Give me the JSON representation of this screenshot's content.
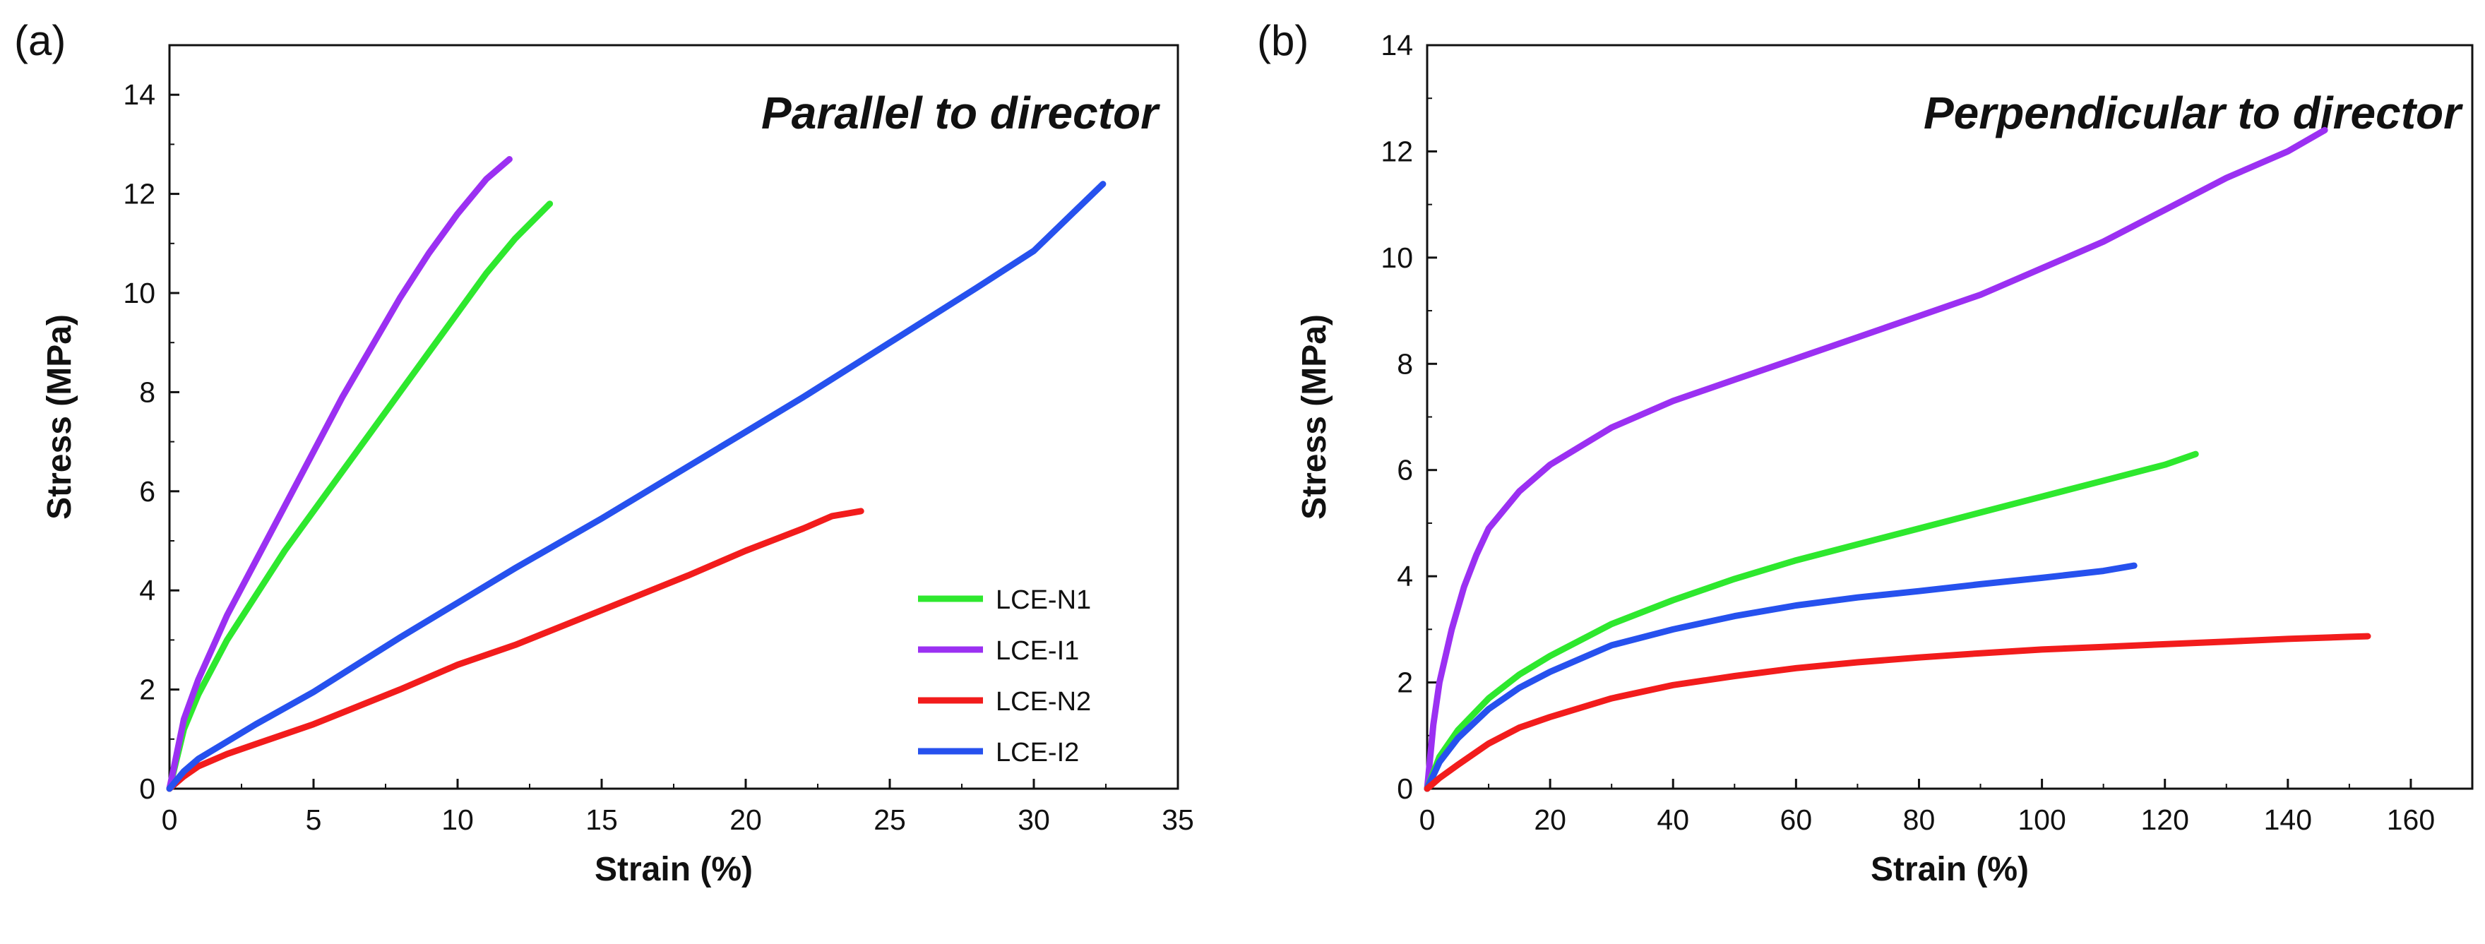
{
  "colors": {
    "LCE-N1": "#2ee82e",
    "LCE-I1": "#9b30f2",
    "LCE-N2": "#f21c1c",
    "LCE-I2": "#2651ee"
  },
  "chart_data": [
    {
      "type": "line",
      "panel_label": "(a)",
      "title": "Parallel to director",
      "xlabel": "Strain (%)",
      "ylabel": "Stress (MPa)",
      "xlim": [
        0,
        35
      ],
      "ylim": [
        0,
        15
      ],
      "xticks": [
        0,
        5,
        10,
        15,
        20,
        25,
        30,
        35
      ],
      "yticks": [
        0,
        2,
        4,
        6,
        8,
        10,
        12,
        14
      ],
      "legend": {
        "position": "lower-right",
        "entries": [
          "LCE-N1",
          "LCE-I1",
          "LCE-N2",
          "LCE-I2"
        ]
      },
      "series": [
        {
          "name": "LCE-N1",
          "x": [
            0,
            0.5,
            1,
            2,
            3,
            4,
            5,
            6,
            7,
            8,
            9,
            10,
            11,
            12,
            13.2
          ],
          "y": [
            0,
            1.2,
            1.9,
            3.0,
            3.9,
            4.8,
            5.6,
            6.4,
            7.2,
            8.0,
            8.8,
            9.6,
            10.4,
            11.1,
            11.8
          ]
        },
        {
          "name": "LCE-I1",
          "x": [
            0,
            0.5,
            1,
            2,
            3,
            4,
            5,
            6,
            7,
            8,
            9,
            10,
            11,
            11.8
          ],
          "y": [
            0,
            1.4,
            2.2,
            3.5,
            4.6,
            5.7,
            6.8,
            7.9,
            8.9,
            9.9,
            10.8,
            11.6,
            12.3,
            12.7
          ]
        },
        {
          "name": "LCE-N2",
          "x": [
            0,
            0.5,
            1,
            2,
            3,
            5,
            8,
            10,
            12,
            15,
            18,
            20,
            22,
            23,
            24
          ],
          "y": [
            0,
            0.25,
            0.45,
            0.7,
            0.9,
            1.3,
            2.0,
            2.5,
            2.9,
            3.6,
            4.3,
            4.8,
            5.25,
            5.5,
            5.6
          ]
        },
        {
          "name": "LCE-I2",
          "x": [
            0,
            0.5,
            1,
            2,
            3,
            5,
            8,
            10,
            12,
            15,
            18,
            20,
            22,
            25,
            28,
            30,
            32.4
          ],
          "y": [
            0,
            0.35,
            0.6,
            0.95,
            1.3,
            1.95,
            3.05,
            3.75,
            4.45,
            5.45,
            6.5,
            7.2,
            7.9,
            9.0,
            10.1,
            10.85,
            12.2
          ]
        }
      ]
    },
    {
      "type": "line",
      "panel_label": "(b)",
      "title": "Perpendicular to director",
      "xlabel": "Strain (%)",
      "ylabel": "Stress (MPa)",
      "xlim": [
        0,
        170
      ],
      "ylim": [
        0,
        14
      ],
      "xticks": [
        0,
        20,
        40,
        60,
        80,
        100,
        120,
        140,
        160
      ],
      "yticks": [
        0,
        2,
        4,
        6,
        8,
        10,
        12,
        14
      ],
      "series": [
        {
          "name": "LCE-I1",
          "x": [
            0,
            1,
            2,
            4,
            6,
            8,
            10,
            15,
            20,
            30,
            40,
            50,
            60,
            70,
            80,
            90,
            100,
            110,
            120,
            130,
            140,
            146
          ],
          "y": [
            0,
            1.2,
            2.0,
            3.0,
            3.8,
            4.4,
            4.9,
            5.6,
            6.1,
            6.8,
            7.3,
            7.7,
            8.1,
            8.5,
            8.9,
            9.3,
            9.8,
            10.3,
            10.9,
            11.5,
            12.0,
            12.4
          ]
        },
        {
          "name": "LCE-N1",
          "x": [
            0,
            2,
            5,
            10,
            15,
            20,
            30,
            40,
            50,
            60,
            70,
            80,
            90,
            100,
            110,
            120,
            125
          ],
          "y": [
            0,
            0.6,
            1.1,
            1.7,
            2.15,
            2.5,
            3.1,
            3.55,
            3.95,
            4.3,
            4.6,
            4.9,
            5.2,
            5.5,
            5.8,
            6.1,
            6.3
          ]
        },
        {
          "name": "LCE-I2",
          "x": [
            0,
            2,
            5,
            10,
            15,
            20,
            30,
            40,
            50,
            60,
            70,
            80,
            90,
            100,
            110,
            115
          ],
          "y": [
            0,
            0.5,
            0.95,
            1.5,
            1.9,
            2.2,
            2.7,
            3.0,
            3.25,
            3.45,
            3.6,
            3.72,
            3.85,
            3.97,
            4.1,
            4.2
          ]
        },
        {
          "name": "LCE-N2",
          "x": [
            0,
            2,
            5,
            10,
            15,
            20,
            30,
            40,
            50,
            60,
            70,
            80,
            90,
            100,
            110,
            120,
            130,
            140,
            150,
            153
          ],
          "y": [
            0,
            0.2,
            0.45,
            0.85,
            1.15,
            1.35,
            1.7,
            1.95,
            2.12,
            2.27,
            2.38,
            2.47,
            2.55,
            2.62,
            2.67,
            2.72,
            2.77,
            2.82,
            2.86,
            2.87
          ]
        }
      ]
    }
  ]
}
